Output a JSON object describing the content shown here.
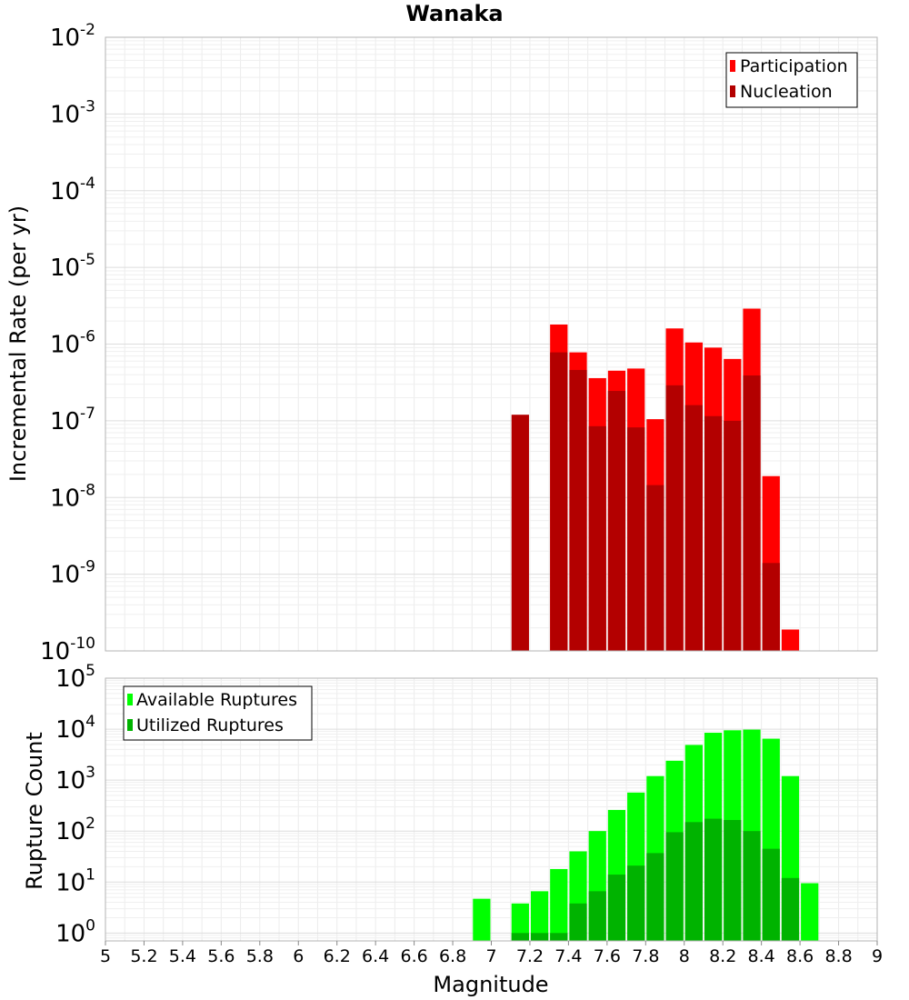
{
  "chart_data": [
    {
      "type": "bar",
      "title": "Wanaka",
      "xlabel": "",
      "ylabel": "Incremental Rate (per yr)",
      "xlim": [
        5,
        9
      ],
      "ylim": [
        1e-10,
        0.01
      ],
      "yscale": "log",
      "y_ticks": [
        {
          "base": "10",
          "exp": "-10"
        },
        {
          "base": "10",
          "exp": "-9"
        },
        {
          "base": "10",
          "exp": "-8"
        },
        {
          "base": "10",
          "exp": "-7"
        },
        {
          "base": "10",
          "exp": "-6"
        },
        {
          "base": "10",
          "exp": "-5"
        },
        {
          "base": "10",
          "exp": "-4"
        },
        {
          "base": "10",
          "exp": "-3"
        },
        {
          "base": "10",
          "exp": "-2"
        }
      ],
      "grid": true,
      "legend_position": "top-right",
      "bar_width": 0.1,
      "series": [
        {
          "name": "Participation",
          "color": "#ff0000",
          "x": [
            7.35,
            7.45,
            7.55,
            7.65,
            7.75,
            7.85,
            7.95,
            8.05,
            8.15,
            8.25,
            8.35,
            8.45,
            8.55
          ],
          "values": [
            1.8e-06,
            7.8e-07,
            3.6e-07,
            4.5e-07,
            4.8e-07,
            1.05e-07,
            1.6e-06,
            1.05e-06,
            9e-07,
            6.4e-07,
            2.9e-06,
            1.9e-08,
            1.9e-10
          ]
        },
        {
          "name": "Nucleation",
          "color": "#b30000",
          "x": [
            7.15,
            7.35,
            7.45,
            7.55,
            7.65,
            7.75,
            7.85,
            7.95,
            8.05,
            8.15,
            8.25,
            8.35,
            8.45
          ],
          "values": [
            1.2e-07,
            7.8e-07,
            4.6e-07,
            8.5e-08,
            2.45e-07,
            8.2e-08,
            1.45e-08,
            2.9e-07,
            1.6e-07,
            1.15e-07,
            1e-07,
            3.9e-07,
            1.4e-09
          ]
        }
      ]
    },
    {
      "type": "bar",
      "title": "",
      "xlabel": "Magnitude",
      "ylabel": "Rupture Count",
      "xlim": [
        5,
        9
      ],
      "ylim": [
        0.7,
        100000.0
      ],
      "yscale": "log",
      "x_ticks": [
        "5",
        "5.2",
        "5.4",
        "5.6",
        "5.8",
        "6",
        "6.2",
        "6.4",
        "6.6",
        "6.8",
        "7",
        "7.2",
        "7.4",
        "7.6",
        "7.8",
        "8",
        "8.2",
        "8.4",
        "8.6",
        "8.8",
        "9"
      ],
      "y_ticks": [
        {
          "base": "10",
          "exp": "0"
        },
        {
          "base": "10",
          "exp": "1"
        },
        {
          "base": "10",
          "exp": "2"
        },
        {
          "base": "10",
          "exp": "3"
        },
        {
          "base": "10",
          "exp": "4"
        },
        {
          "base": "10",
          "exp": "5"
        }
      ],
      "grid": true,
      "legend_position": "top-left",
      "bar_width": 0.1,
      "series": [
        {
          "name": "Available Ruptures",
          "color": "#00ff00",
          "x": [
            6.95,
            7.15,
            7.25,
            7.35,
            7.45,
            7.55,
            7.65,
            7.75,
            7.85,
            7.95,
            8.05,
            8.15,
            8.25,
            8.35,
            8.45,
            8.55,
            8.65
          ],
          "values": [
            4.7,
            3.8,
            6.6,
            18,
            40,
            100,
            260,
            570,
            1200,
            2400,
            4900,
            8500,
            9500,
            9800,
            6500,
            1200,
            9.5
          ]
        },
        {
          "name": "Utilized Ruptures",
          "color": "#00b300",
          "x": [
            7.15,
            7.25,
            7.35,
            7.45,
            7.55,
            7.65,
            7.75,
            7.85,
            7.95,
            8.05,
            8.15,
            8.25,
            8.35,
            8.45,
            8.55
          ],
          "values": [
            1,
            1,
            1,
            3.8,
            6.6,
            14,
            21,
            37,
            95,
            150,
            175,
            165,
            100,
            45,
            12
          ]
        }
      ]
    }
  ]
}
